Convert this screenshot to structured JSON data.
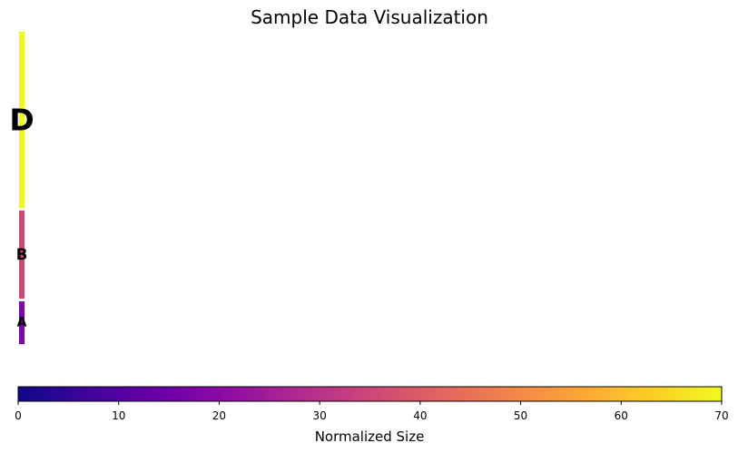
{
  "chart_data": {
    "type": "treemap",
    "title": "Sample Data Visualization",
    "categories": [
      "D",
      "B",
      "A"
    ],
    "values": [
      70,
      35,
      17
    ],
    "colormap": "plasma",
    "colorbar": {
      "label": "Normalized Size",
      "range": [
        0,
        70
      ],
      "ticks": [
        0,
        10,
        20,
        30,
        40,
        50,
        60,
        70
      ],
      "orientation": "horizontal",
      "placement": "bottom"
    },
    "grid": false,
    "legend": "none"
  }
}
